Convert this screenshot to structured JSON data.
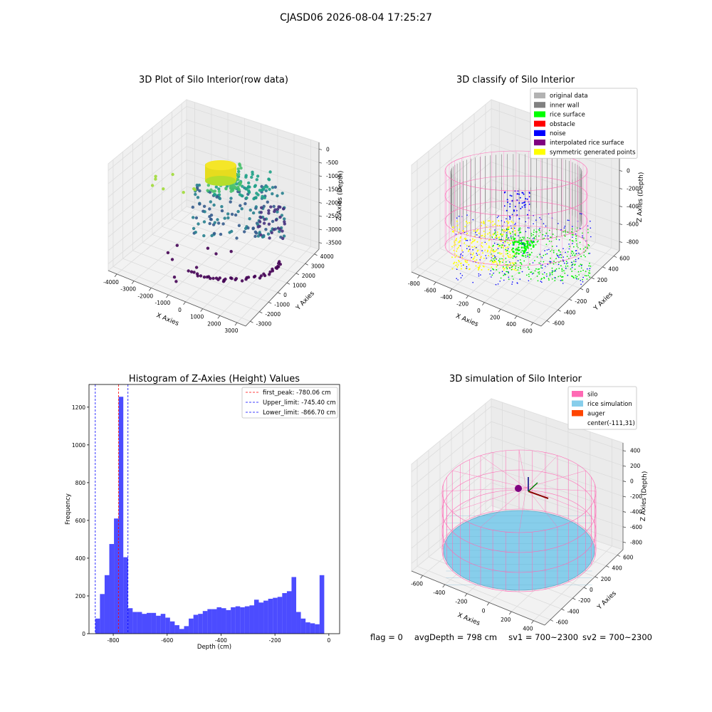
{
  "suptitle": "CJASD06 2026-08-04 17:25:27",
  "footer": {
    "flag": "flag = 0",
    "avg_depth": "avgDepth = 798 cm",
    "sv1": "sv1 = 700~2300",
    "sv2": "sv2 = 700~2300"
  },
  "chart_data": [
    {
      "type": "scatter",
      "title": "3D Plot of Silo Interior(row data)",
      "xlabel": "X Axies",
      "ylabel": "Y Axies",
      "zlabel": "Z Axies (Depth)",
      "x_ticks": [
        "-4000",
        "-3000",
        "-2000",
        "-1000",
        "0",
        "1000",
        "2000",
        "3000"
      ],
      "y_ticks": [
        "-3000",
        "-2000",
        "-1000",
        "0",
        "1000",
        "2000",
        "3000",
        "4000"
      ],
      "z_ticks": [
        "0",
        "-500",
        "-1000",
        "-1500",
        "-2000",
        "-2500",
        "-3000",
        "-3500"
      ],
      "xlim": [
        -4000,
        3000
      ],
      "ylim": [
        -3000,
        4000
      ],
      "zlim": [
        -3800,
        200
      ],
      "colormap": "viridis",
      "grid": true
    },
    {
      "type": "scatter",
      "title": "3D classify of Silo Interior",
      "xlabel": "X Axies",
      "ylabel": "Y Axies",
      "zlabel": "Z Axies (Depth)",
      "x_ticks": [
        "-800",
        "-600",
        "-400",
        "-200",
        "0",
        "200",
        "400",
        "600"
      ],
      "y_ticks": [
        "-600",
        "-400",
        "-200",
        "0",
        "200",
        "400",
        "600"
      ],
      "z_ticks": [
        "200",
        "0",
        "-200",
        "-400",
        "-600",
        "-800"
      ],
      "xlim": [
        -800,
        600
      ],
      "ylim": [
        -600,
        600
      ],
      "zlim": [
        -950,
        300
      ],
      "legend_position": "top-right",
      "legend": [
        {
          "label": "original data",
          "color": "#b2b2b2"
        },
        {
          "label": "inner wall",
          "color": "#808080"
        },
        {
          "label": "rice surface",
          "color": "#00ff00"
        },
        {
          "label": "obstacle",
          "color": "#ff0000"
        },
        {
          "label": "noise",
          "color": "#0000ff"
        },
        {
          "label": "interpolated rice surface",
          "color": "#800080"
        },
        {
          "label": "symmetric generated points",
          "color": "#ffff00"
        }
      ],
      "grid": true
    },
    {
      "type": "bar",
      "title": "Histogram of Z-Axies (Height) Values",
      "xlabel": "Depth (cm)",
      "ylabel": "Frequency",
      "xlim": [
        -890,
        40
      ],
      "ylim": [
        0,
        1320
      ],
      "x_ticks": [
        -800,
        -600,
        -400,
        -200,
        0
      ],
      "y_ticks": [
        0,
        200,
        400,
        600,
        800,
        1000,
        1200
      ],
      "bar_color": "#0000ff",
      "bin_start": -866.7,
      "bin_width": 17.34,
      "values": [
        80,
        210,
        310,
        475,
        610,
        1255,
        405,
        135,
        115,
        115,
        105,
        110,
        110,
        95,
        105,
        85,
        65,
        45,
        25,
        40,
        80,
        100,
        105,
        120,
        130,
        130,
        140,
        135,
        125,
        140,
        145,
        140,
        145,
        150,
        180,
        165,
        175,
        185,
        190,
        195,
        215,
        225,
        300,
        115,
        80,
        60,
        55,
        50,
        310
      ],
      "vlines": [
        {
          "label": "first_peak: -780.06 cm",
          "x": -780.06,
          "color": "#ff0000"
        },
        {
          "label": "Upper_limit: -745.40 cm",
          "x": -745.4,
          "color": "#0000ff"
        },
        {
          "label": "Lower_limit: -866.70 cm",
          "x": -866.7,
          "color": "#0000ff"
        }
      ],
      "legend_position": "top-right",
      "grid": false
    },
    {
      "type": "scatter",
      "title": "3D simulation of Silo Interior",
      "xlabel": "X Axies",
      "ylabel": "Y Axies",
      "zlabel": "Z Axies (Depth)",
      "x_ticks": [
        "-600",
        "-400",
        "-200",
        "0",
        "200",
        "400"
      ],
      "y_ticks": [
        "-600",
        "-400",
        "-200",
        "0",
        "200",
        "400",
        "600"
      ],
      "z_ticks": [
        "400",
        "200",
        "0",
        "-200",
        "-400",
        "-600",
        "-800"
      ],
      "xlim": [
        -700,
        500
      ],
      "ylim": [
        -700,
        700
      ],
      "zlim": [
        -950,
        500
      ],
      "legend_position": "top-right",
      "legend": [
        {
          "label": "silo",
          "color": "#ff69b4"
        },
        {
          "label": "rice simulation",
          "color": "#87ceeb"
        },
        {
          "label": "auger",
          "color": "#ff4500"
        },
        {
          "label": "center(-111,31)",
          "color": "none"
        }
      ],
      "grid": true
    }
  ]
}
